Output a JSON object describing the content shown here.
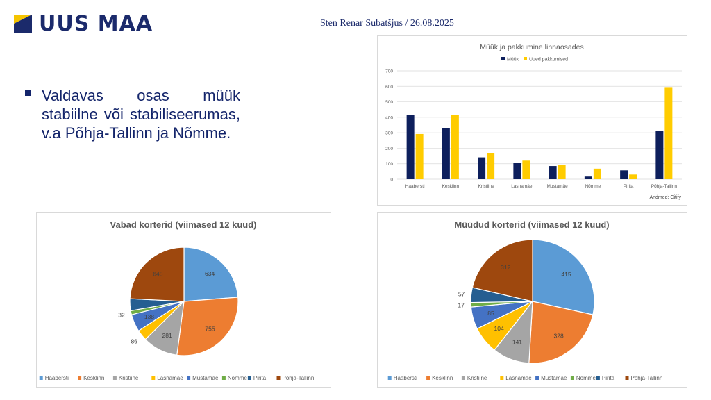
{
  "header": {
    "logo_text": "UUS MAA",
    "byline": "Sten Renar Subatšjus / 26.08.2025",
    "colors": {
      "brand_navy": "#1b2a6b",
      "brand_yellow": "#f5c400"
    }
  },
  "bullet": {
    "text": "Valdavas osas müük stabiilne või stabiliseerumas, v.a Põhja-Tallinn ja Nõmme."
  },
  "chart_data": [
    {
      "type": "bar",
      "title": "Müük ja pakkumine linnaosades",
      "categories": [
        "Haabersti",
        "Kesklinn",
        "Kristiine",
        "Lasnamäe",
        "Mustamäe",
        "Nõmme",
        "Pirita",
        "Põhja-Tallinn"
      ],
      "series": [
        {
          "name": "Müük",
          "values": [
            415,
            328,
            141,
            104,
            85,
            17,
            57,
            312
          ],
          "color": "#0d1f5c"
        },
        {
          "name": "Uued pakkumised",
          "values": [
            292,
            415,
            168,
            120,
            92,
            68,
            30,
            595
          ],
          "color": "#ffcc00"
        }
      ],
      "ylim": [
        0,
        700
      ],
      "yticks": [
        0,
        100,
        200,
        300,
        400,
        500,
        600,
        700
      ],
      "grid": true,
      "legend": "top",
      "source": "Andmed: Citify"
    },
    {
      "type": "pie",
      "title": "Vabad korterid (viimased 12 kuud)",
      "categories": [
        "Haabersti",
        "Kesklinn",
        "Kristiine",
        "Lasnamäe",
        "Mustamäe",
        "Nõmme",
        "Pirita",
        "Põhja-Tallinn"
      ],
      "values": [
        634,
        755,
        281,
        86,
        138,
        32,
        95,
        645
      ],
      "labels": [
        "634",
        "755",
        "281",
        "86",
        "138",
        "32",
        "",
        "645"
      ],
      "colors": [
        "#5b9bd5",
        "#ed7d31",
        "#a5a5a5",
        "#ffc000",
        "#4472c4",
        "#70ad47",
        "#255e91",
        "#9e480e"
      ],
      "legend": "bottom"
    },
    {
      "type": "pie",
      "title": "Müüdud korterid (viimased 12 kuud)",
      "categories": [
        "Haabersti",
        "Kesklinn",
        "Kristiine",
        "Lasnamäe",
        "Mustamäe",
        "Nõmme",
        "Pirita",
        "Põhja-Tallinn"
      ],
      "values": [
        415,
        328,
        141,
        104,
        85,
        17,
        57,
        312
      ],
      "labels": [
        "415",
        "328",
        "141",
        "104",
        "85",
        "17",
        "57",
        "312"
      ],
      "colors": [
        "#5b9bd5",
        "#ed7d31",
        "#a5a5a5",
        "#ffc000",
        "#4472c4",
        "#70ad47",
        "#255e91",
        "#9e480e"
      ],
      "legend": "bottom"
    }
  ]
}
